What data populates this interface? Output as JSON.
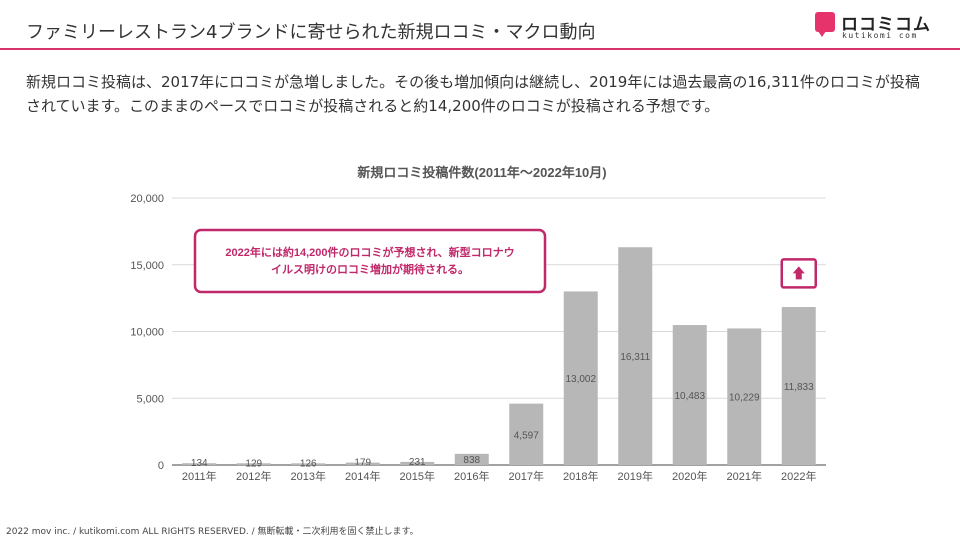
{
  "header": {
    "title": "ファミリーレストラン4ブランドに寄せられた新規ロコミ・マクロ動向",
    "logo_text": "ロコミコム",
    "logo_sub": "kutikomi com",
    "accent_color": "#d6336c"
  },
  "description": "新規ロコミ投稿は、2017年にロコミが急増しました。その後も増加傾向は継続し、2019年には過去最高の16,311件のロコミが投稿されています。このままのペースでロコミが投稿されると約14,200件のロコミが投稿される予想です。",
  "chart_data": {
    "type": "bar",
    "title": "新規ロコミ投稿件数(2011年〜2022年10月)",
    "categories": [
      "2011年",
      "2012年",
      "2013年",
      "2014年",
      "2015年",
      "2016年",
      "2017年",
      "2018年",
      "2019年",
      "2020年",
      "2021年",
      "2022年"
    ],
    "values": [
      134,
      129,
      126,
      179,
      231,
      838,
      4597,
      13002,
      16311,
      10483,
      10229,
      11833
    ],
    "value_labels": [
      "134",
      "129",
      "126",
      "179",
      "231",
      "838",
      "4,597",
      "13,002",
      "16,311",
      "10,483",
      "10,229",
      "11,833"
    ],
    "y_ticks": [
      0,
      5000,
      10000,
      15000,
      20000
    ],
    "y_tick_labels": [
      "0",
      "5,000",
      "10,000",
      "15,000",
      "20,000"
    ],
    "ylim": [
      0,
      20000
    ],
    "bar_color": "#b7b7b7",
    "callout": {
      "text_line1": "2022年には約14,200件のロコミが予想され、新型コロナウ",
      "text_line2": "イルス明けのロコミ増加が期待される。",
      "color": "#c0286a"
    },
    "projected_total": 14200
  },
  "footer": "2022 mov inc. / kutikomi.com ALL RIGHTS RESERVED. / 無断転載・二次利用を固く禁止します。"
}
